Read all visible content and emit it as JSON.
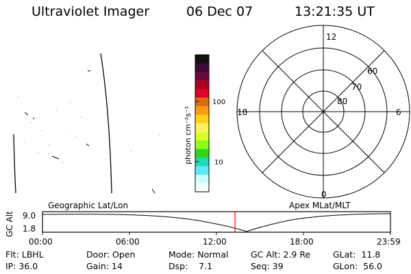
{
  "header": {
    "instrument": "Ultraviolet Imager",
    "date": "06 Dec 07",
    "time": "13:21:35 UT"
  },
  "colorbar": {
    "unit_label": "photon cm⁻²s⁻¹",
    "tick_labels": [
      "100",
      "10"
    ],
    "colors": [
      "#101010",
      "#3a0a3a",
      "#6a0a3a",
      "#b00020",
      "#e00028",
      "#e06a10",
      "#ff9a10",
      "#ffd21a",
      "#fff35a",
      "#d8ff2a",
      "#8cff18",
      "#2ad814",
      "#20d8b4",
      "#5ae8ff",
      "#c8fff6",
      "#f4fffc"
    ]
  },
  "geo_panel": {
    "label": "Geographic Lat/Lon"
  },
  "apex_panel": {
    "label": "Apex  MLat/MLT",
    "mlt_labels": {
      "top": "12",
      "bottom": "0",
      "left": "18",
      "right": "6"
    },
    "lat_labels": [
      "60",
      "70",
      "80"
    ]
  },
  "altitude_plot": {
    "y_label": "GC Alt",
    "y_ticks": [
      "9.0",
      "1.8"
    ],
    "x_ticks": [
      "00:00",
      "06:00",
      "12:00",
      "18:00",
      "23:59"
    ],
    "marker_time": "13:21",
    "accent": "#ff0000"
  },
  "info": {
    "rows": [
      [
        "Flt: LBHL",
        "Door: Open",
        "Mode: Normal",
        "GC Alt: 2.9 Re",
        "GLat:  11.8"
      ],
      [
        "IP: 36.0",
        "Gain: 14",
        "Dsp:    7.1",
        "Seq: 39",
        "GLon:  56.0"
      ]
    ]
  }
}
